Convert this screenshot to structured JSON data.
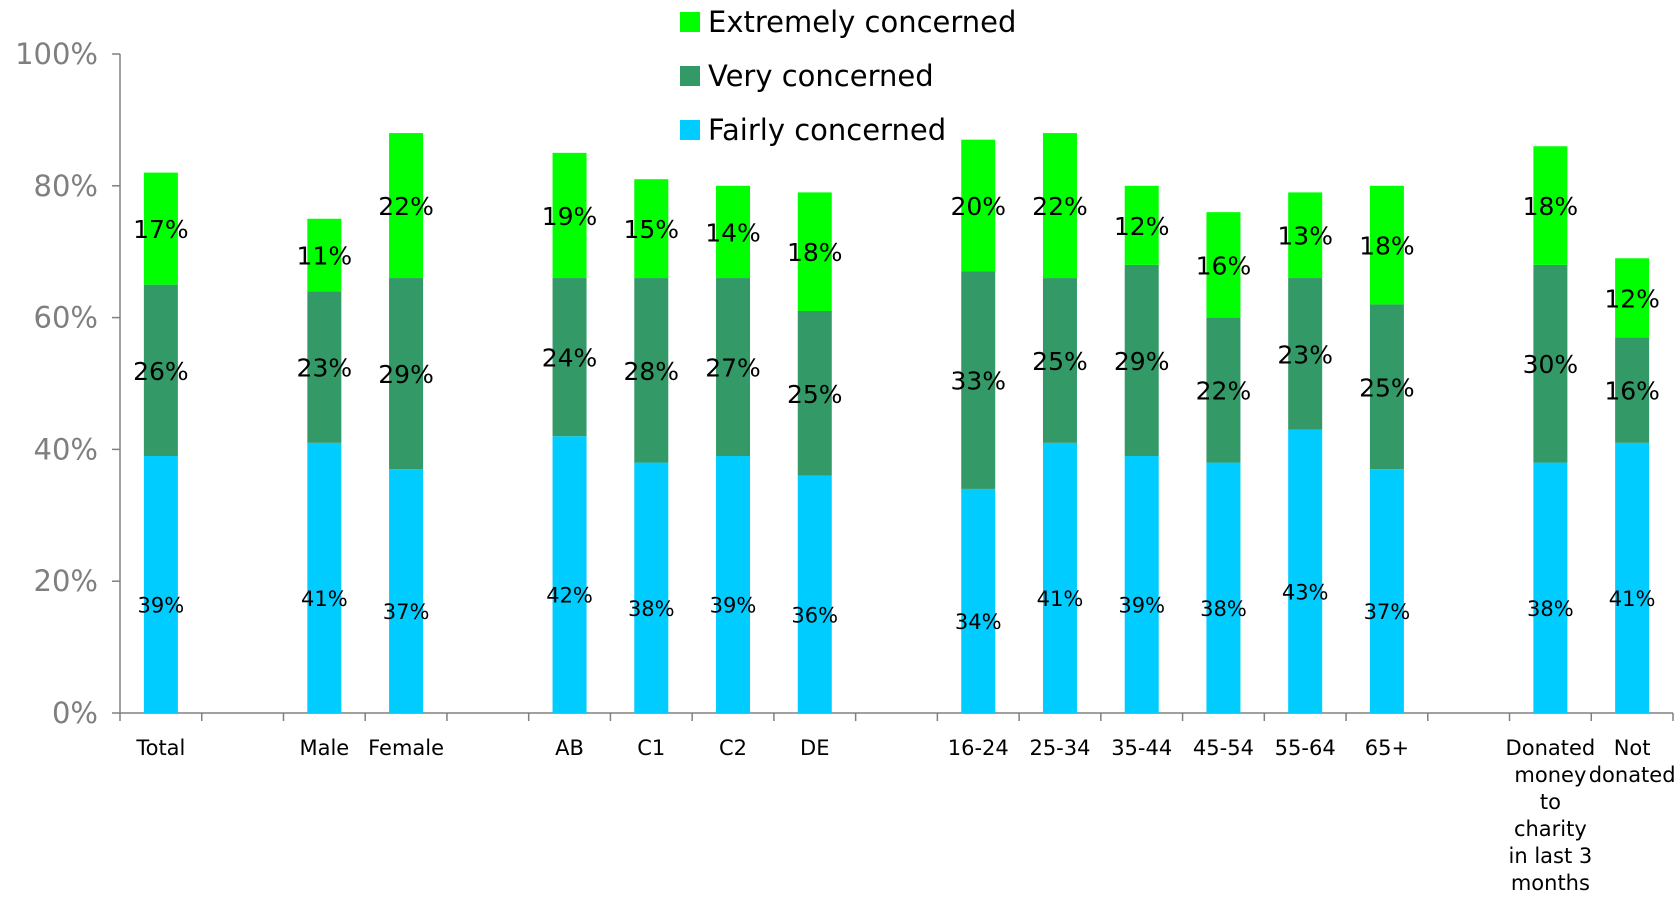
{
  "chart_data": {
    "type": "bar",
    "stacked": true,
    "ylim": [
      0,
      100
    ],
    "yticks": [
      "0%",
      "20%",
      "40%",
      "60%",
      "80%",
      "100%"
    ],
    "grid": false,
    "legend_position": "top-center",
    "categories": [
      {
        "label": "Total",
        "lines": [
          "Total"
        ]
      },
      {
        "label": "",
        "lines": []
      },
      {
        "label": "Male",
        "lines": [
          "Male"
        ]
      },
      {
        "label": "Female",
        "lines": [
          "Female"
        ]
      },
      {
        "label": "",
        "lines": []
      },
      {
        "label": "AB",
        "lines": [
          "AB"
        ]
      },
      {
        "label": "C1",
        "lines": [
          "C1"
        ]
      },
      {
        "label": "C2",
        "lines": [
          "C2"
        ]
      },
      {
        "label": "DE",
        "lines": [
          "DE"
        ]
      },
      {
        "label": "",
        "lines": []
      },
      {
        "label": "16-24",
        "lines": [
          "16-24"
        ]
      },
      {
        "label": "25-34",
        "lines": [
          "25-34"
        ]
      },
      {
        "label": "35-44",
        "lines": [
          "35-44"
        ]
      },
      {
        "label": "45-54",
        "lines": [
          "45-54"
        ]
      },
      {
        "label": "55-64",
        "lines": [
          "55-64"
        ]
      },
      {
        "label": "65+",
        "lines": [
          "65+"
        ]
      },
      {
        "label": "",
        "lines": []
      },
      {
        "label": "Donated money to charity in last 3 months",
        "lines": [
          "Donated",
          "money",
          "to",
          "charity",
          "in last 3",
          "months"
        ]
      },
      {
        "label": "Not donated",
        "lines": [
          "Not",
          "donated"
        ]
      }
    ],
    "series": [
      {
        "name": "Fairly concerned",
        "color": "#00ccff",
        "values": [
          39,
          null,
          41,
          37,
          null,
          42,
          38,
          39,
          36,
          null,
          34,
          41,
          39,
          38,
          43,
          37,
          null,
          38,
          41
        ],
        "labels": [
          "39%",
          "",
          "41%",
          "37%",
          "",
          "42%",
          "38%",
          "39%",
          "36%",
          "",
          "34%",
          "41%",
          "39%",
          "38%",
          "43%",
          "37%",
          "",
          "38%",
          "41%"
        ]
      },
      {
        "name": "Very concerned",
        "color": "#339966",
        "values": [
          26,
          null,
          23,
          29,
          null,
          24,
          28,
          27,
          25,
          null,
          33,
          25,
          29,
          22,
          23,
          25,
          null,
          30,
          16
        ],
        "labels": [
          "26%",
          "",
          "23%",
          "29%",
          "",
          "24%",
          "28%",
          "27%",
          "25%",
          "",
          "33%",
          "25%",
          "29%",
          "22%",
          "23%",
          "25%",
          "",
          "30%",
          "16%"
        ]
      },
      {
        "name": "Extremely concerned",
        "color": "#00ff00",
        "values": [
          17,
          null,
          11,
          22,
          null,
          19,
          15,
          14,
          18,
          null,
          20,
          22,
          12,
          16,
          13,
          18,
          null,
          18,
          12
        ],
        "labels": [
          "17%",
          "",
          "11%",
          "22%",
          "",
          "19%",
          "15%",
          "14%",
          "18%",
          "",
          "20%",
          "22%",
          "12%",
          "16%",
          "13%",
          "18%",
          "",
          "18%",
          "12%"
        ]
      }
    ],
    "legend_order": [
      "Extremely concerned",
      "Very concerned",
      "Fairly concerned"
    ]
  }
}
